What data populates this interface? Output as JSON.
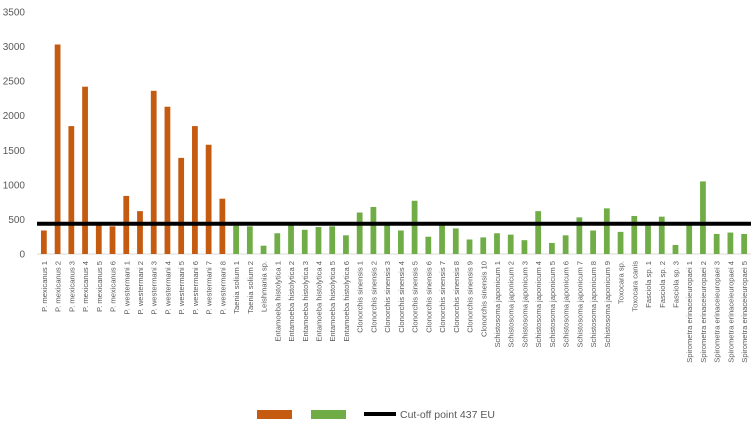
{
  "chart_data": {
    "type": "bar",
    "ylim": [
      0,
      3500
    ],
    "yticks": [
      0,
      500,
      1000,
      1500,
      2000,
      2500,
      3000,
      3500
    ],
    "grid": false,
    "legend_position": "bottom",
    "colors": {
      "group1": "#c55a11",
      "group2": "#70ad47",
      "cutoff": "#000000",
      "axis_text": "#595959",
      "axis_line": "#d9d9d9"
    },
    "cutoff": {
      "value": 437,
      "label": "Cut-off point 437 EU"
    },
    "legend": [
      {
        "key": "group1",
        "label": ""
      },
      {
        "key": "group2",
        "label": ""
      }
    ],
    "categories": [
      "P. mexicanus 1",
      "P. mexicanus 2",
      "P. mexicanus 3",
      "P. mexicanus 4",
      "P. mexicanus 5",
      "P. mexicanus 6",
      "P. westermani 1",
      "P. westermani 2",
      "P. westermani 3",
      "P. westermani 4",
      "P. westermani 5",
      "P. westermani 6",
      "P. westermani 7",
      "P. westermani 8",
      "Taenia solium 1",
      "Taenia solium 2",
      "Leishmania sp.",
      "Entamoeba histolytica 1",
      "Entamoeba histolytica 2",
      "Entamoeba histolytica 3",
      "Entamoeba histolytica 4",
      "Entamoeba histolytica 5",
      "Entamoeba histolytica 6",
      "Clonorchis sinensis 1",
      "Clonorchis sinensis 2",
      "Clonorchis sinensis 3",
      "Clonorchis sinensis 4",
      "Clonorchis sinensis 5",
      "Clonorchis sinensis 6",
      "Clonorchis sinensis 7",
      "Clonorchis sinensis 8",
      "Clonorchis sinensis 9",
      "Clonorchis sinensis 10",
      "Schistosoma japonicum 1",
      "Schistosoma japonicum 2",
      "Schistosoma japonicum 3",
      "Schistosoma japonicum 4",
      "Schistosoma japonicum 5",
      "Schistosoma japonicum 6",
      "Schistosoma japonicum 7",
      "Schistosoma japonicum 8",
      "Schistosoma japonicum 9",
      "Toxocara sp.",
      "Toxocara canis",
      "Fasciola sp. 1",
      "Fasciola sp. 2",
      "Fasciola sp. 3",
      "Spirometra erinaceieuropaei 1",
      "Spirometra erinaceieuropaei 2",
      "Spirometra erinaceieuropaei 3",
      "Spirometra erinaceieuropaei 4",
      "Spirometra erinaceieuropaei 5"
    ],
    "values": [
      340,
      3030,
      1850,
      2420,
      420,
      400,
      840,
      620,
      2360,
      2130,
      1390,
      1850,
      1580,
      800,
      410,
      400,
      120,
      300,
      430,
      350,
      390,
      400,
      270,
      600,
      680,
      440,
      340,
      770,
      250,
      430,
      370,
      210,
      240,
      300,
      280,
      200,
      620,
      160,
      270,
      530,
      340,
      660,
      320,
      550,
      440,
      540,
      130,
      420,
      1050,
      290,
      310,
      290
    ],
    "groups": [
      "group1",
      "group1",
      "group1",
      "group1",
      "group1",
      "group1",
      "group1",
      "group1",
      "group1",
      "group1",
      "group1",
      "group1",
      "group1",
      "group1",
      "group2",
      "group2",
      "group2",
      "group2",
      "group2",
      "group2",
      "group2",
      "group2",
      "group2",
      "group2",
      "group2",
      "group2",
      "group2",
      "group2",
      "group2",
      "group2",
      "group2",
      "group2",
      "group2",
      "group2",
      "group2",
      "group2",
      "group2",
      "group2",
      "group2",
      "group2",
      "group2",
      "group2",
      "group2",
      "group2",
      "group2",
      "group2",
      "group2",
      "group2",
      "group2",
      "group2",
      "group2",
      "group2"
    ]
  }
}
